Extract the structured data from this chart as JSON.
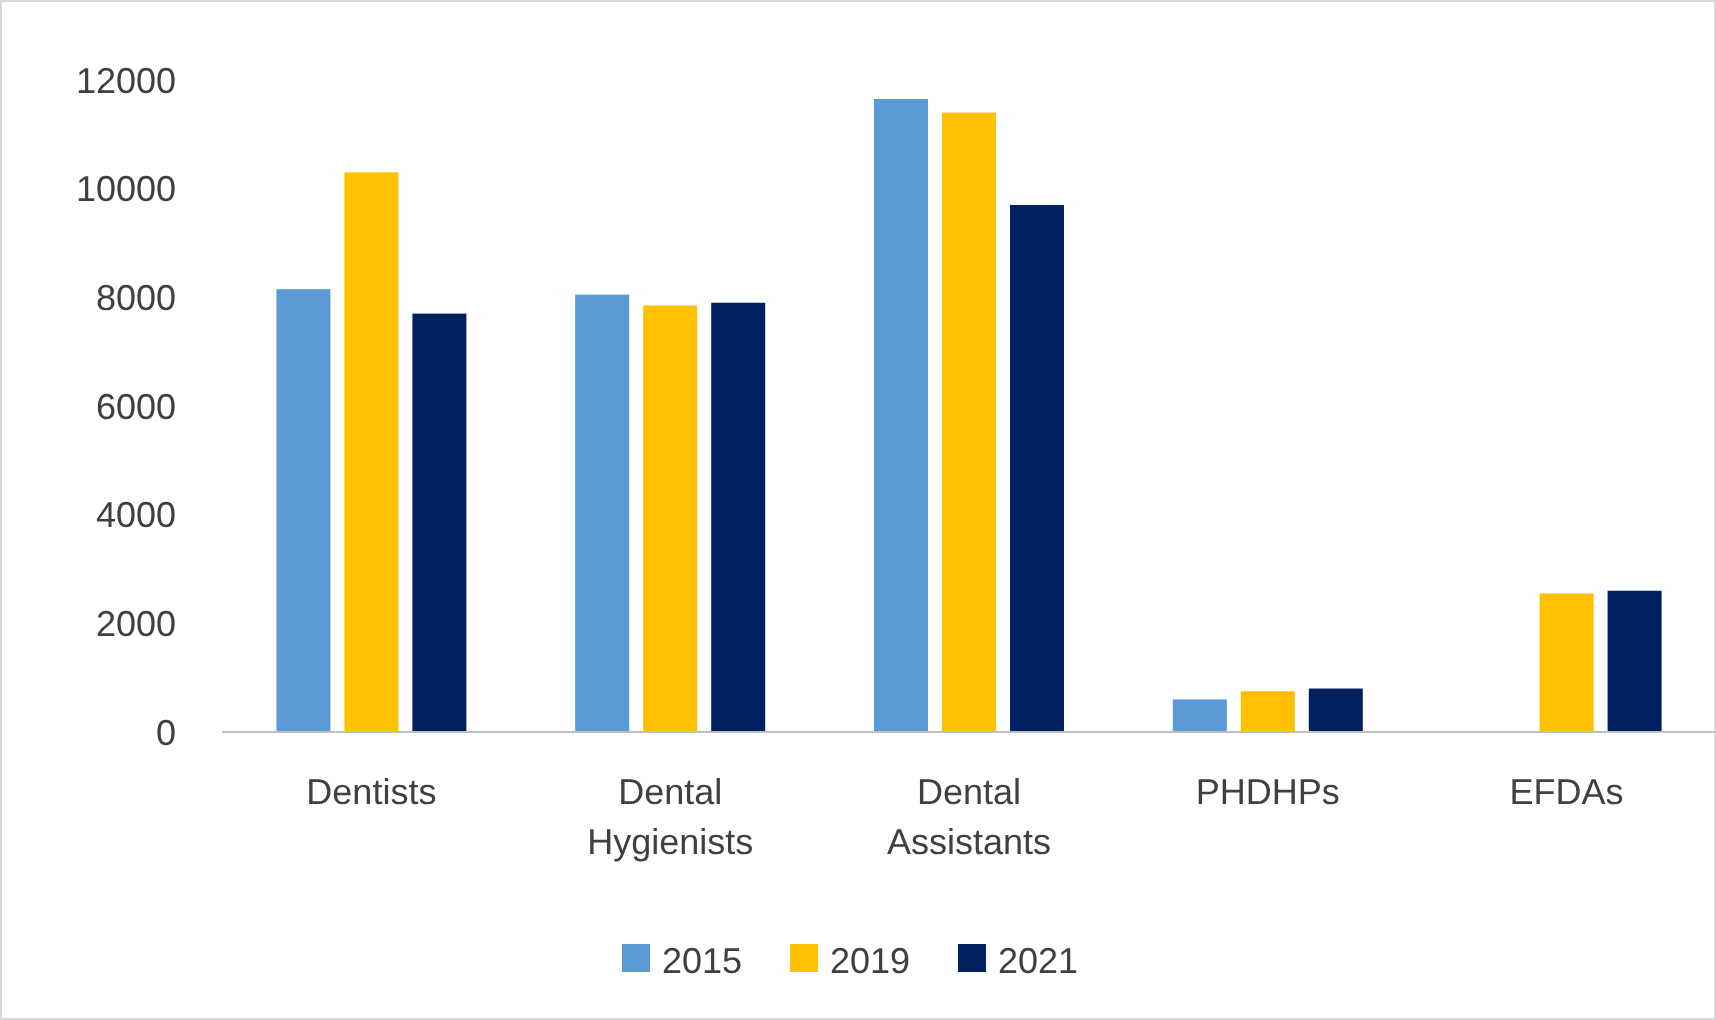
{
  "chart_data": {
    "type": "bar",
    "categories": [
      "Dentists",
      "Dental Hygienists",
      "Dental Assistants",
      "PHDHPs",
      "EFDAs"
    ],
    "series": [
      {
        "name": "2015",
        "color": "#5b9bd5",
        "values": [
          8150,
          8050,
          11650,
          600,
          null
        ]
      },
      {
        "name": "2019",
        "color": "#ffc000",
        "values": [
          10300,
          7850,
          11400,
          750,
          2550
        ]
      },
      {
        "name": "2021",
        "color": "#002060",
        "values": [
          7700,
          7900,
          9700,
          800,
          2600
        ]
      }
    ],
    "ylim": [
      0,
      12000
    ],
    "yticks": [
      0,
      2000,
      4000,
      6000,
      8000,
      10000,
      12000
    ],
    "grid": false,
    "legend": "bottom"
  }
}
